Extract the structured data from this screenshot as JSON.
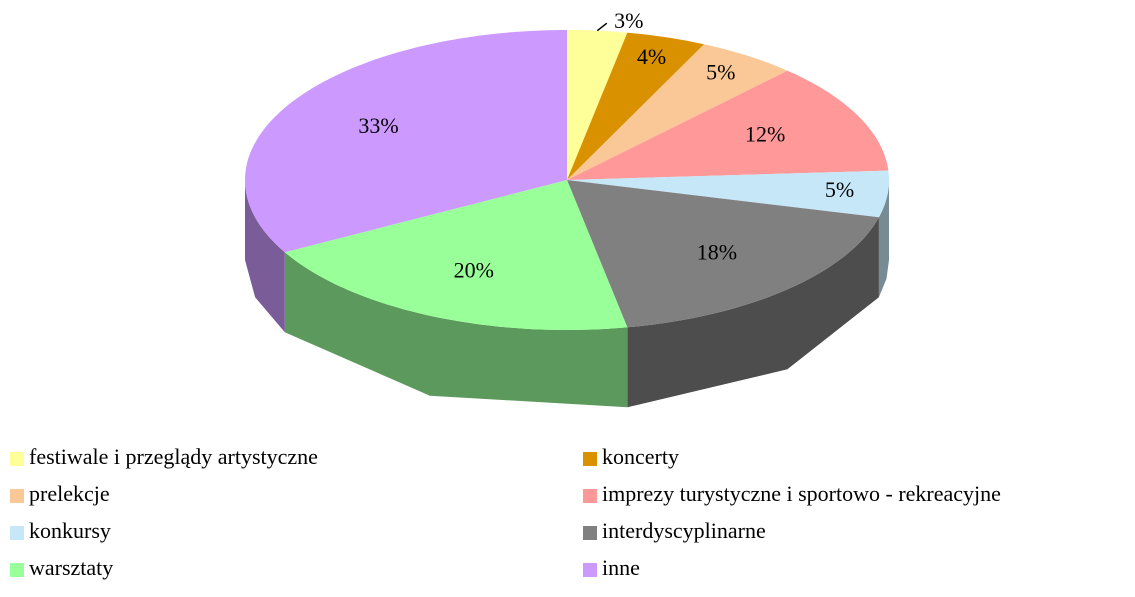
{
  "chart_data": {
    "type": "pie",
    "categories": [
      "festiwale i przeglądy artystyczne",
      "koncerty",
      "prelekcje",
      "imprezy turystyczne i sportowo - rekreacyjne",
      "konkursy",
      "interdyscyplinarne",
      "warsztaty",
      "inne"
    ],
    "values": [
      3,
      4,
      5,
      12,
      5,
      18,
      20,
      33
    ],
    "value_labels": [
      "3%",
      "4%",
      "5%",
      "12%",
      "5%",
      "18%",
      "20%",
      "33%"
    ],
    "colors": [
      "#ffff99",
      "#d99100",
      "#fac896",
      "#ff9999",
      "#c6e7f8",
      "#808080",
      "#99ff99",
      "#cc99ff"
    ],
    "legend": "bottom"
  }
}
